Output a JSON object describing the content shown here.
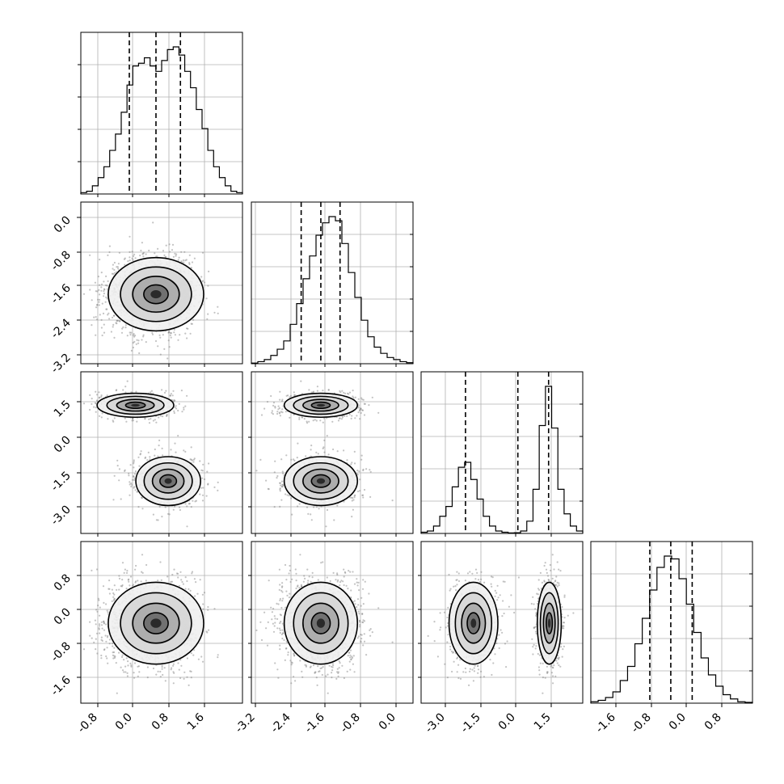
{
  "chart_data": {
    "type": "corner",
    "parameters": 4,
    "grid": true,
    "tick_labels": {
      "x": [
        [
          "-0.8",
          "0.0",
          "0.8",
          "1.6"
        ],
        [
          "-3.2",
          "-2.4",
          "-1.6",
          "-0.8",
          "0.0"
        ],
        [
          "-3.0",
          "-1.5",
          "0.0",
          "1.5"
        ],
        [
          "-1.6",
          "-0.8",
          "0.0",
          "0.8"
        ]
      ],
      "y": [
        [],
        [
          "0.0",
          "-0.8",
          "-1.6",
          "-2.4",
          "-3.2"
        ],
        [
          "1.5",
          "0.0",
          "-1.5",
          "-3.0"
        ],
        [
          "0.8",
          "0.0",
          "-0.8",
          "-1.6"
        ]
      ]
    },
    "ranges": [
      [
        -1.1,
        2.6
      ],
      [
        -3.2,
        0.5
      ],
      [
        -4.3,
        2.8
      ],
      [
        -2.3,
        1.4
      ]
    ],
    "quantiles": [
      [
        0.01,
        0.62,
        1.18
      ],
      [
        -2.06,
        -1.61,
        -1.17
      ],
      [
        -2.35,
        -0.05,
        1.3
      ],
      [
        -0.95,
        -0.47,
        0.02
      ]
    ],
    "histograms": [
      {
        "edges": [
          -1.1,
          2.6
        ],
        "counts": [
          0.5,
          1,
          3,
          6,
          10,
          16,
          22,
          30,
          40,
          47,
          48,
          50,
          47,
          45,
          49,
          53,
          54,
          51,
          45,
          39,
          31,
          24,
          16,
          10,
          6,
          3,
          1,
          0.5
        ]
      },
      {
        "edges": [
          -3.2,
          0.5
        ],
        "counts": [
          0.3,
          1,
          2,
          4,
          7,
          11,
          19,
          29,
          41,
          52,
          62,
          68,
          71,
          69,
          58,
          44,
          32,
          21,
          13,
          8,
          5,
          3,
          2,
          1,
          0.5
        ]
      },
      {
        "edges": [
          -4.3,
          2.8
        ],
        "counts": [
          0.5,
          1,
          3,
          7,
          11,
          19,
          27,
          29,
          22,
          14,
          7,
          3,
          1,
          0.5,
          0.2,
          0.3,
          1,
          5,
          18,
          44,
          60,
          43,
          18,
          8,
          3,
          1
        ]
      },
      {
        "edges": [
          -2.3,
          1.4
        ],
        "counts": [
          0.5,
          1,
          2,
          4,
          8,
          13,
          21,
          30,
          40,
          48,
          52,
          51,
          44,
          35,
          25,
          16,
          10,
          6,
          3,
          1.5,
          0.5,
          0.3
        ]
      }
    ],
    "clusters": {
      "p2": [
        {
          "weight": 0.5,
          "mean": 1.33
        },
        {
          "weight": 0.5,
          "mean": -2.0
        }
      ]
    }
  }
}
